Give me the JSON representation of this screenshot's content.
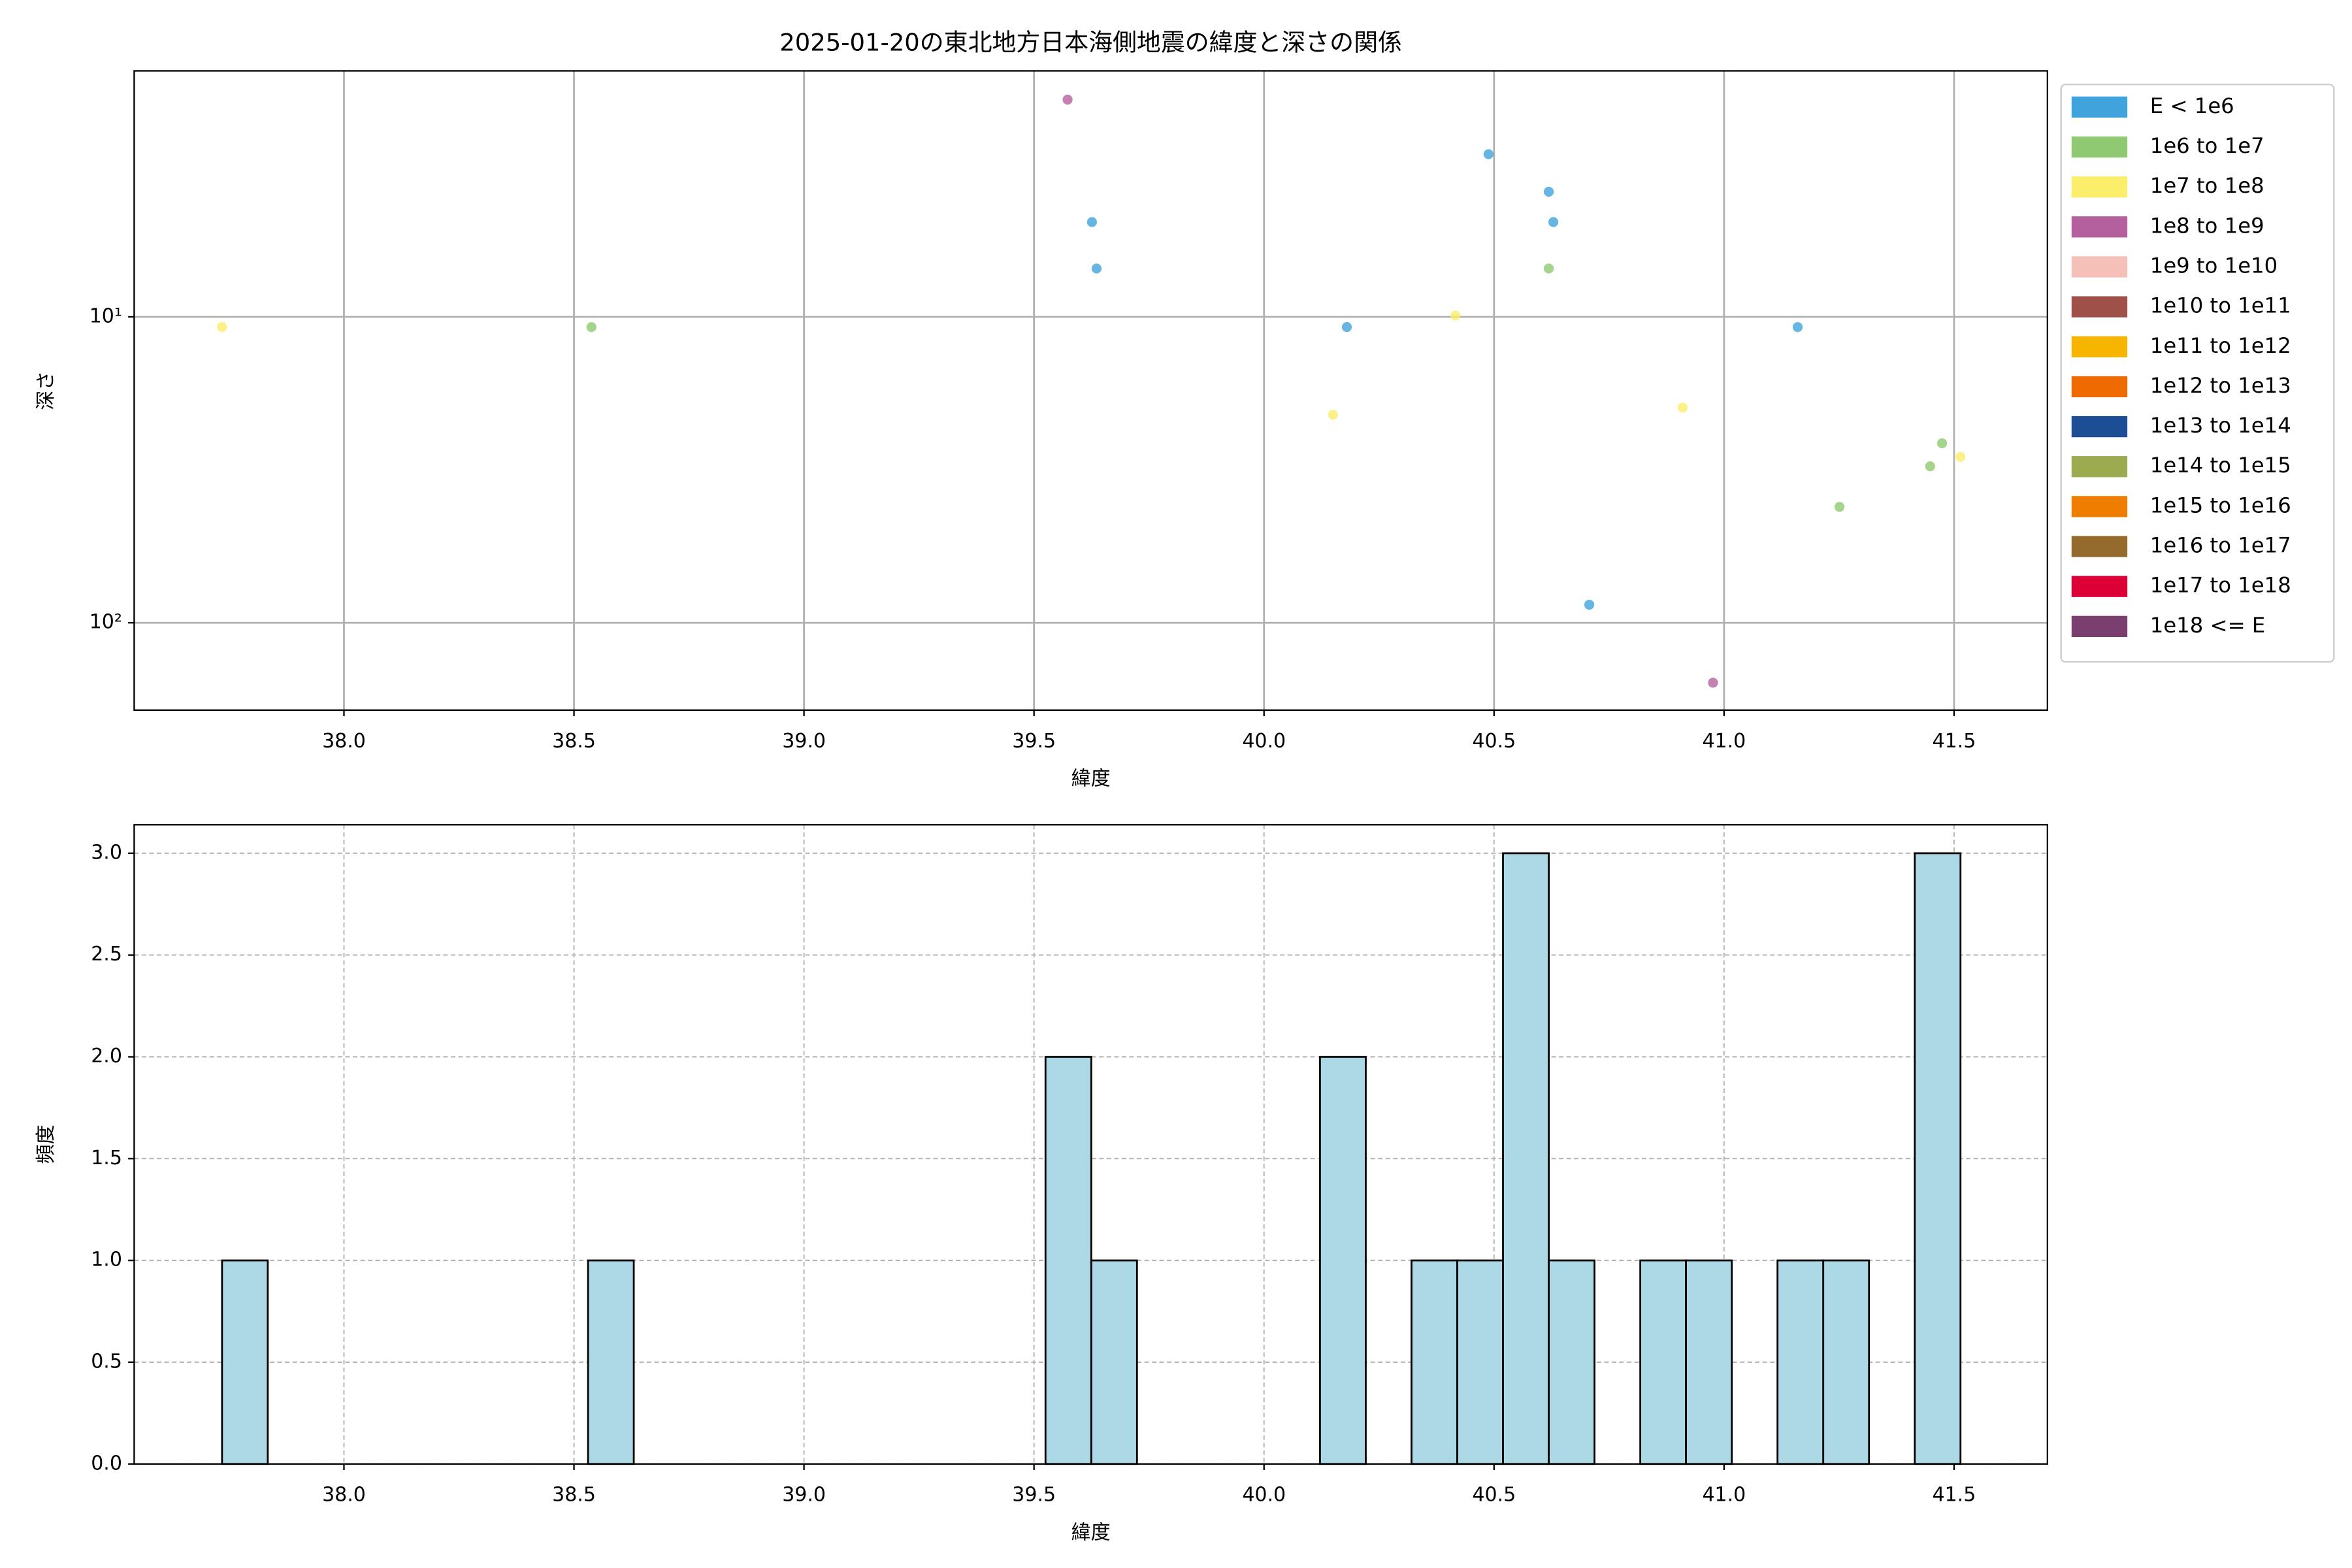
{
  "chart_data": [
    {
      "type": "scatter",
      "title": "2025-01-20の東北地方日本海側地震の緯度と深さの関係",
      "xlabel": "緯度",
      "ylabel": "深さ",
      "xlim": [
        37.544,
        41.703
      ],
      "xticks": [
        {
          "value": 38,
          "label": "38.0"
        },
        {
          "value": 38.5,
          "label": "38.5"
        },
        {
          "value": 39,
          "label": "39.0"
        },
        {
          "value": 39.5,
          "label": "39.5"
        },
        {
          "value": 40,
          "label": "40.0"
        },
        {
          "value": 40.5,
          "label": "40.5"
        },
        {
          "value": 41,
          "label": "41.0"
        },
        {
          "value": 41.5,
          "label": "41.5"
        }
      ],
      "ylim": [
        193,
        1.57
      ],
      "yscale": "log",
      "yticks": [
        {
          "value": 10,
          "label": "10¹"
        },
        {
          "value": 100,
          "label": "10²"
        }
      ],
      "grid": true,
      "legend": "outside right",
      "series": [
        {
          "name": "E < 1e6",
          "color": "#41a3dc",
          "x": [
            39.626,
            39.636,
            40.18,
            40.488,
            40.619,
            40.629,
            40.707,
            41.16
          ],
          "values": [
            4.9,
            6.95,
            10.8,
            2.94,
            3.9,
            4.9,
            87.3,
            10.8
          ]
        },
        {
          "name": "1e6 to 1e7",
          "color": "#8fc971",
          "x": [
            38.538,
            40.619,
            41.251,
            41.448,
            41.474
          ],
          "values": [
            10.8,
            6.95,
            41.8,
            30.8,
            25.9
          ]
        },
        {
          "name": "1e7 to 1e8",
          "color": "#fbee6a",
          "x": [
            37.735,
            40.15,
            40.416,
            40.91,
            41.514
          ],
          "values": [
            10.8,
            20.9,
            9.9,
            19.8,
            28.7
          ]
        },
        {
          "name": "1e8 to 1e9",
          "color": "#b5609e",
          "x": [
            39.573,
            40.976
          ],
          "values": [
            1.95,
            157
          ]
        },
        {
          "name": "1e9 to 1e10",
          "color": "#f4c0b8",
          "x": [],
          "values": []
        },
        {
          "name": "1e10 to 1e11",
          "color": "#9e5049",
          "x": [],
          "values": []
        },
        {
          "name": "1e11 to 1e12",
          "color": "#f7b500",
          "x": [],
          "values": []
        },
        {
          "name": "1e12 to 1e13",
          "color": "#ef6a00",
          "x": [],
          "values": []
        },
        {
          "name": "1e13 to 1e14",
          "color": "#1c4e96",
          "x": [],
          "values": []
        },
        {
          "name": "1e14 to 1e15",
          "color": "#9caa50",
          "x": [],
          "values": []
        },
        {
          "name": "1e15 to 1e16",
          "color": "#ef7d00",
          "x": [],
          "values": []
        },
        {
          "name": "1e16 to 1e17",
          "color": "#946a2d",
          "x": [],
          "values": []
        },
        {
          "name": "1e17 to 1e18",
          "color": "#dc0037",
          "x": [],
          "values": []
        },
        {
          "name": "1e18 <= E",
          "color": "#7a3f6e",
          "x": [],
          "values": []
        }
      ]
    },
    {
      "type": "histogram",
      "xlabel": "緯度",
      "ylabel": "頻度",
      "xlim": [
        37.544,
        41.703
      ],
      "xticks": [
        {
          "value": 38,
          "label": "38.0"
        },
        {
          "value": 38.5,
          "label": "38.5"
        },
        {
          "value": 39,
          "label": "39.0"
        },
        {
          "value": 39.5,
          "label": "39.5"
        },
        {
          "value": 40,
          "label": "40.0"
        },
        {
          "value": 40.5,
          "label": "40.5"
        },
        {
          "value": 41,
          "label": "41.0"
        },
        {
          "value": 41.5,
          "label": "41.5"
        }
      ],
      "ylim": [
        0,
        3.14
      ],
      "yticks": [
        {
          "value": 0,
          "label": "0.0"
        },
        0.5,
        {
          "value": 1,
          "label": "1.0"
        },
        1.5,
        {
          "value": 2,
          "label": "2.0"
        },
        2.5,
        {
          "value": 3,
          "label": "3.0"
        }
      ],
      "grid": true,
      "grid_style": "dashed",
      "color": "#add8e6",
      "edgecolor": "#000000",
      "bins": [
        37.735,
        37.8344,
        37.9339,
        38.0333,
        38.1328,
        38.2322,
        38.3317,
        38.4311,
        38.5306,
        38.63,
        38.7295,
        38.8289,
        38.9284,
        39.0278,
        39.1273,
        39.2267,
        39.3262,
        39.4256,
        39.525,
        39.6245,
        39.7239,
        39.8234,
        39.9228,
        40.0223,
        40.1217,
        40.2212,
        40.3206,
        40.4201,
        40.5195,
        40.619,
        40.7184,
        40.8179,
        40.9173,
        41.0168,
        41.1162,
        41.2157,
        41.3151,
        41.4146,
        41.514
      ],
      "values": [
        1,
        0,
        0,
        0,
        0,
        0,
        0,
        0,
        1,
        0,
        0,
        0,
        0,
        0,
        0,
        0,
        0,
        0,
        2,
        1,
        0,
        0,
        0,
        0,
        2,
        0,
        1,
        1,
        3,
        1,
        0,
        1,
        1,
        0,
        1,
        1,
        0,
        3
      ]
    }
  ]
}
